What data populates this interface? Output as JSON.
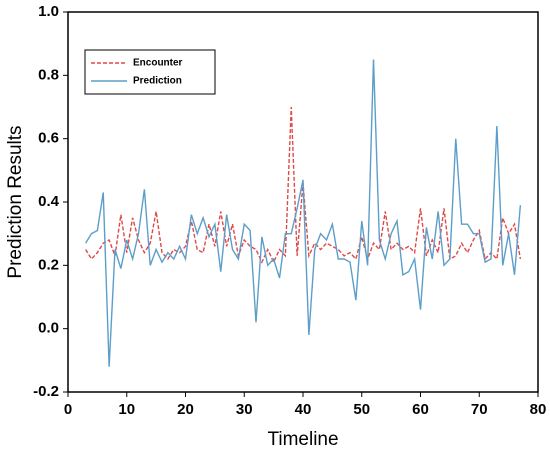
{
  "chart_data": {
    "type": "line",
    "xlabel": "Timeline",
    "ylabel": "Prediction Results",
    "x": [
      3,
      4,
      5,
      6,
      7,
      8,
      9,
      10,
      11,
      12,
      13,
      14,
      15,
      16,
      17,
      18,
      19,
      20,
      21,
      22,
      23,
      24,
      25,
      26,
      27,
      28,
      29,
      30,
      31,
      32,
      33,
      34,
      35,
      36,
      37,
      38,
      39,
      40,
      41,
      42,
      43,
      44,
      45,
      46,
      47,
      48,
      49,
      50,
      51,
      52,
      53,
      54,
      55,
      56,
      57,
      58,
      59,
      60,
      61,
      62,
      63,
      64,
      65,
      66,
      67,
      68,
      69,
      70,
      71,
      72,
      73,
      74,
      75,
      76,
      77
    ],
    "series": [
      {
        "name": "Encounter",
        "color": "#e04848",
        "dashed": true,
        "values": [
          0.25,
          0.22,
          0.24,
          0.27,
          0.28,
          0.23,
          0.36,
          0.24,
          0.35,
          0.28,
          0.24,
          0.27,
          0.37,
          0.24,
          0.22,
          0.25,
          0.24,
          0.26,
          0.34,
          0.25,
          0.24,
          0.33,
          0.26,
          0.37,
          0.26,
          0.33,
          0.23,
          0.28,
          0.26,
          0.25,
          0.21,
          0.25,
          0.21,
          0.25,
          0.23,
          0.7,
          0.23,
          0.46,
          0.23,
          0.27,
          0.25,
          0.27,
          0.26,
          0.25,
          0.23,
          0.24,
          0.22,
          0.29,
          0.22,
          0.27,
          0.25,
          0.37,
          0.25,
          0.27,
          0.25,
          0.26,
          0.24,
          0.38,
          0.23,
          0.28,
          0.24,
          0.38,
          0.22,
          0.23,
          0.27,
          0.24,
          0.28,
          0.31,
          0.22,
          0.24,
          0.22,
          0.35,
          0.3,
          0.33,
          0.22
        ]
      },
      {
        "name": "Prediction",
        "color": "#5b9ec9",
        "dashed": false,
        "values": [
          0.27,
          0.3,
          0.31,
          0.43,
          -0.12,
          0.25,
          0.19,
          0.28,
          0.22,
          0.3,
          0.44,
          0.2,
          0.25,
          0.21,
          0.24,
          0.22,
          0.26,
          0.22,
          0.36,
          0.3,
          0.35,
          0.29,
          0.33,
          0.18,
          0.36,
          0.25,
          0.22,
          0.33,
          0.31,
          0.02,
          0.29,
          0.2,
          0.22,
          0.16,
          0.3,
          0.3,
          0.38,
          0.47,
          -0.02,
          0.25,
          0.3,
          0.28,
          0.33,
          0.22,
          0.22,
          0.21,
          0.09,
          0.34,
          0.2,
          0.85,
          0.28,
          0.22,
          0.3,
          0.34,
          0.17,
          0.18,
          0.22,
          0.06,
          0.32,
          0.22,
          0.37,
          0.2,
          0.22,
          0.6,
          0.33,
          0.33,
          0.3,
          0.3,
          0.21,
          0.22,
          0.64,
          0.2,
          0.3,
          0.17,
          0.39
        ]
      }
    ],
    "xlim": [
      0,
      80
    ],
    "xticks": [
      0,
      10,
      20,
      30,
      40,
      50,
      60,
      70,
      80
    ],
    "ylim": [
      -0.2,
      1.0
    ],
    "yticks": [
      {
        "value": -0.2,
        "label": "-0.2"
      },
      {
        "value": 0,
        "label": "0.0"
      },
      0.2,
      0.4,
      0.6,
      0.8,
      {
        "value": 1,
        "label": "1.0"
      }
    ],
    "legend": "upper left",
    "grid": false
  }
}
